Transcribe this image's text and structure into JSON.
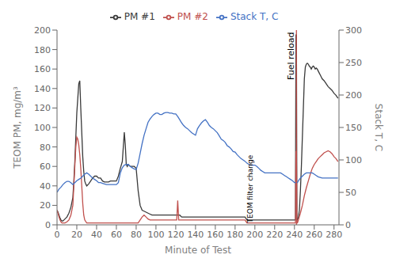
{
  "chart_data": {
    "type": "line",
    "xlabel": "Minute of Test",
    "ylabel": "TEOM PM, mg/m³",
    "y2label": "Stack T, C",
    "xlim": [
      0,
      285
    ],
    "xticks": [
      0,
      20,
      40,
      60,
      80,
      100,
      120,
      140,
      160,
      180,
      200,
      220,
      240,
      260,
      280
    ],
    "ylim": [
      0,
      200
    ],
    "yticks": [
      0,
      20,
      40,
      60,
      80,
      100,
      120,
      140,
      160,
      180,
      200
    ],
    "y2lim": [
      0,
      300
    ],
    "y2ticks": [
      0,
      50,
      100,
      150,
      200,
      250,
      300
    ],
    "grid": false,
    "legend": "upper center",
    "series": [
      {
        "name": "PM #1",
        "color": "#3a3a3a",
        "axis": "y",
        "x": [
          0,
          1,
          2,
          3,
          4,
          5,
          6,
          7,
          8,
          10,
          12,
          14,
          16,
          17,
          18,
          19,
          20,
          21,
          22,
          23,
          24,
          25,
          26,
          27,
          28,
          29,
          30,
          32,
          34,
          36,
          38,
          40,
          42,
          44,
          46,
          48,
          50,
          52,
          54,
          56,
          58,
          60,
          62,
          64,
          66,
          67,
          68,
          69,
          70,
          71,
          72,
          74,
          76,
          78,
          80,
          82,
          84,
          86,
          88,
          90,
          92,
          94,
          96,
          98,
          100,
          102,
          104,
          106,
          108,
          110,
          112,
          114,
          116,
          118,
          120,
          122,
          124,
          126,
          128,
          130,
          132,
          134,
          136,
          138,
          140,
          142,
          144,
          146,
          148,
          150,
          152,
          154,
          156,
          158,
          160,
          162,
          164,
          166,
          168,
          170,
          172,
          174,
          176,
          178,
          180,
          182,
          184,
          186,
          188,
          190,
          192,
          194,
          196,
          198,
          200,
          202,
          204,
          206,
          208,
          210,
          212,
          214,
          216,
          218,
          220,
          222,
          224,
          226,
          228,
          230,
          232,
          234,
          236,
          238,
          240,
          241,
          241.5,
          242,
          242.5,
          243,
          244,
          245,
          246,
          247,
          248,
          249,
          250,
          251,
          252,
          253,
          254,
          255,
          256,
          257,
          258,
          259,
          260,
          261,
          262,
          263,
          264,
          265,
          266,
          267,
          268,
          270,
          272,
          274,
          276,
          278,
          280,
          282,
          284
        ],
        "values": [
          15,
          13,
          10,
          7,
          5,
          4,
          4,
          5,
          6,
          8,
          12,
          18,
          28,
          45,
          65,
          90,
          115,
          130,
          145,
          148,
          120,
          95,
          70,
          55,
          45,
          42,
          40,
          42,
          45,
          48,
          50,
          50,
          48,
          48,
          45,
          44,
          44,
          44,
          45,
          45,
          45,
          45,
          50,
          58,
          65,
          80,
          95,
          82,
          62,
          60,
          62,
          60,
          60,
          60,
          58,
          35,
          20,
          15,
          14,
          13,
          12,
          11,
          10,
          10,
          10,
          10,
          10,
          10,
          10,
          10,
          10,
          10,
          10,
          10,
          10,
          10,
          10,
          8,
          8,
          8,
          8,
          8,
          8,
          8,
          8,
          8,
          8,
          8,
          8,
          8,
          8,
          8,
          8,
          8,
          8,
          8,
          8,
          8,
          8,
          8,
          8,
          8,
          8,
          8,
          8,
          8,
          8,
          8,
          8,
          8,
          5,
          5,
          5,
          5,
          5,
          5,
          5,
          5,
          5,
          5,
          5,
          5,
          5,
          5,
          5,
          5,
          5,
          5,
          5,
          5,
          5,
          5,
          5,
          5,
          5,
          5,
          195,
          195,
          5,
          5,
          8,
          15,
          35,
          60,
          90,
          120,
          150,
          162,
          165,
          166,
          165,
          163,
          162,
          160,
          162,
          163,
          162,
          160,
          161,
          160,
          158,
          156,
          154,
          152,
          150,
          148,
          145,
          142,
          140,
          138,
          135,
          133,
          130
        ]
      },
      {
        "name": "PM #2",
        "color": "#c0504d",
        "axis": "y",
        "x": [
          0,
          1,
          2,
          3,
          4,
          5,
          6,
          7,
          8,
          10,
          12,
          14,
          16,
          17,
          18,
          19,
          20,
          21,
          22,
          23,
          24,
          25,
          26,
          27,
          28,
          30,
          32,
          34,
          36,
          38,
          40,
          42,
          44,
          46,
          48,
          50,
          52,
          54,
          56,
          58,
          60,
          62,
          64,
          66,
          68,
          70,
          72,
          74,
          76,
          78,
          80,
          82,
          84,
          86,
          88,
          90,
          92,
          94,
          96,
          98,
          100,
          102,
          104,
          106,
          108,
          110,
          112,
          114,
          116,
          118,
          120,
          121,
          122,
          123,
          124,
          126,
          128,
          130,
          132,
          134,
          136,
          138,
          140,
          142,
          144,
          146,
          148,
          150,
          152,
          154,
          156,
          158,
          160,
          162,
          164,
          166,
          168,
          170,
          172,
          174,
          176,
          178,
          180,
          182,
          184,
          186,
          188,
          190,
          192,
          194,
          196,
          198,
          200,
          202,
          204,
          206,
          208,
          210,
          212,
          214,
          216,
          218,
          220,
          222,
          224,
          226,
          228,
          230,
          232,
          234,
          236,
          238,
          240,
          241,
          241.5,
          242,
          242.5,
          243,
          244,
          246,
          248,
          250,
          252,
          254,
          256,
          258,
          260,
          262,
          264,
          266,
          268,
          270,
          272,
          274,
          276,
          278,
          280,
          282,
          284
        ],
        "values": [
          15,
          12,
          8,
          5,
          3,
          2,
          2,
          2,
          2,
          3,
          5,
          10,
          20,
          40,
          60,
          80,
          90,
          88,
          82,
          72,
          58,
          40,
          22,
          10,
          5,
          2,
          2,
          2,
          2,
          2,
          2,
          2,
          2,
          2,
          2,
          2,
          2,
          2,
          2,
          2,
          2,
          2,
          2,
          2,
          2,
          2,
          2,
          2,
          2,
          2,
          2,
          2,
          5,
          8,
          10,
          8,
          6,
          5,
          5,
          5,
          5,
          5,
          5,
          5,
          5,
          5,
          5,
          5,
          5,
          5,
          5,
          5,
          25,
          5,
          5,
          5,
          5,
          5,
          5,
          5,
          5,
          5,
          5,
          5,
          5,
          5,
          5,
          5,
          5,
          5,
          5,
          5,
          5,
          5,
          5,
          5,
          5,
          5,
          5,
          5,
          5,
          5,
          5,
          5,
          5,
          5,
          5,
          5,
          2,
          2,
          2,
          2,
          2,
          2,
          2,
          2,
          2,
          2,
          2,
          2,
          2,
          2,
          2,
          2,
          2,
          2,
          2,
          2,
          2,
          2,
          2,
          2,
          2,
          2,
          75,
          75,
          2,
          2,
          5,
          12,
          20,
          30,
          38,
          45,
          52,
          58,
          62,
          65,
          68,
          70,
          72,
          74,
          75,
          76,
          75,
          73,
          70,
          68,
          65
        ]
      },
      {
        "name": "Stack T, C",
        "color": "#4472c4",
        "axis": "y2",
        "x": [
          0,
          2,
          4,
          6,
          8,
          10,
          12,
          14,
          16,
          18,
          20,
          22,
          24,
          26,
          28,
          30,
          32,
          34,
          36,
          38,
          40,
          42,
          44,
          46,
          48,
          50,
          52,
          54,
          56,
          58,
          60,
          62,
          64,
          66,
          68,
          70,
          72,
          74,
          76,
          78,
          80,
          82,
          84,
          86,
          88,
          90,
          92,
          94,
          96,
          98,
          100,
          102,
          104,
          106,
          108,
          110,
          112,
          114,
          116,
          118,
          120,
          122,
          124,
          126,
          128,
          130,
          132,
          134,
          136,
          138,
          140,
          142,
          144,
          146,
          148,
          150,
          152,
          154,
          156,
          158,
          160,
          162,
          164,
          166,
          168,
          170,
          172,
          174,
          176,
          178,
          180,
          182,
          184,
          186,
          188,
          190,
          192,
          194,
          196,
          198,
          200,
          202,
          204,
          206,
          208,
          210,
          212,
          214,
          216,
          218,
          220,
          222,
          224,
          226,
          228,
          230,
          232,
          234,
          236,
          238,
          240,
          241,
          241.5,
          242,
          242.5,
          243,
          244,
          246,
          248,
          250,
          252,
          254,
          256,
          258,
          260,
          262,
          264,
          266,
          268,
          270,
          272,
          274,
          276,
          278,
          280,
          282,
          284
        ],
        "values": [
          50,
          55,
          58,
          62,
          65,
          67,
          67,
          65,
          62,
          65,
          68,
          70,
          72,
          75,
          78,
          80,
          78,
          75,
          72,
          70,
          68,
          65,
          65,
          64,
          63,
          62,
          62,
          62,
          62,
          62,
          62,
          65,
          80,
          88,
          92,
          93,
          93,
          90,
          88,
          86,
          85,
          95,
          110,
          125,
          138,
          148,
          158,
          163,
          167,
          170,
          172,
          172,
          170,
          170,
          172,
          173,
          173,
          172,
          172,
          171,
          171,
          167,
          162,
          157,
          153,
          150,
          148,
          145,
          142,
          140,
          138,
          148,
          153,
          157,
          160,
          162,
          158,
          153,
          150,
          148,
          145,
          142,
          137,
          132,
          130,
          127,
          122,
          120,
          117,
          113,
          112,
          108,
          105,
          102,
          100,
          98,
          95,
          93,
          92,
          92,
          92,
          90,
          87,
          84,
          82,
          80,
          80,
          80,
          80,
          80,
          80,
          80,
          80,
          80,
          78,
          76,
          74,
          72,
          70,
          68,
          65,
          65,
          65,
          65,
          65,
          65,
          68,
          72,
          75,
          78,
          80,
          80,
          80,
          80,
          78,
          76,
          74,
          73,
          72,
          72,
          72,
          72,
          72,
          72,
          72,
          72,
          72
        ]
      }
    ],
    "vlines": [
      {
        "x": 242,
        "color": "#c0504d"
      }
    ],
    "annotations": [
      {
        "text": "Fuel reload",
        "x": 241.2,
        "y": 198,
        "anchor": "top"
      },
      {
        "text": "TEOM filter change",
        "x": 199.5,
        "y": 2,
        "anchor": "bottom"
      }
    ]
  }
}
